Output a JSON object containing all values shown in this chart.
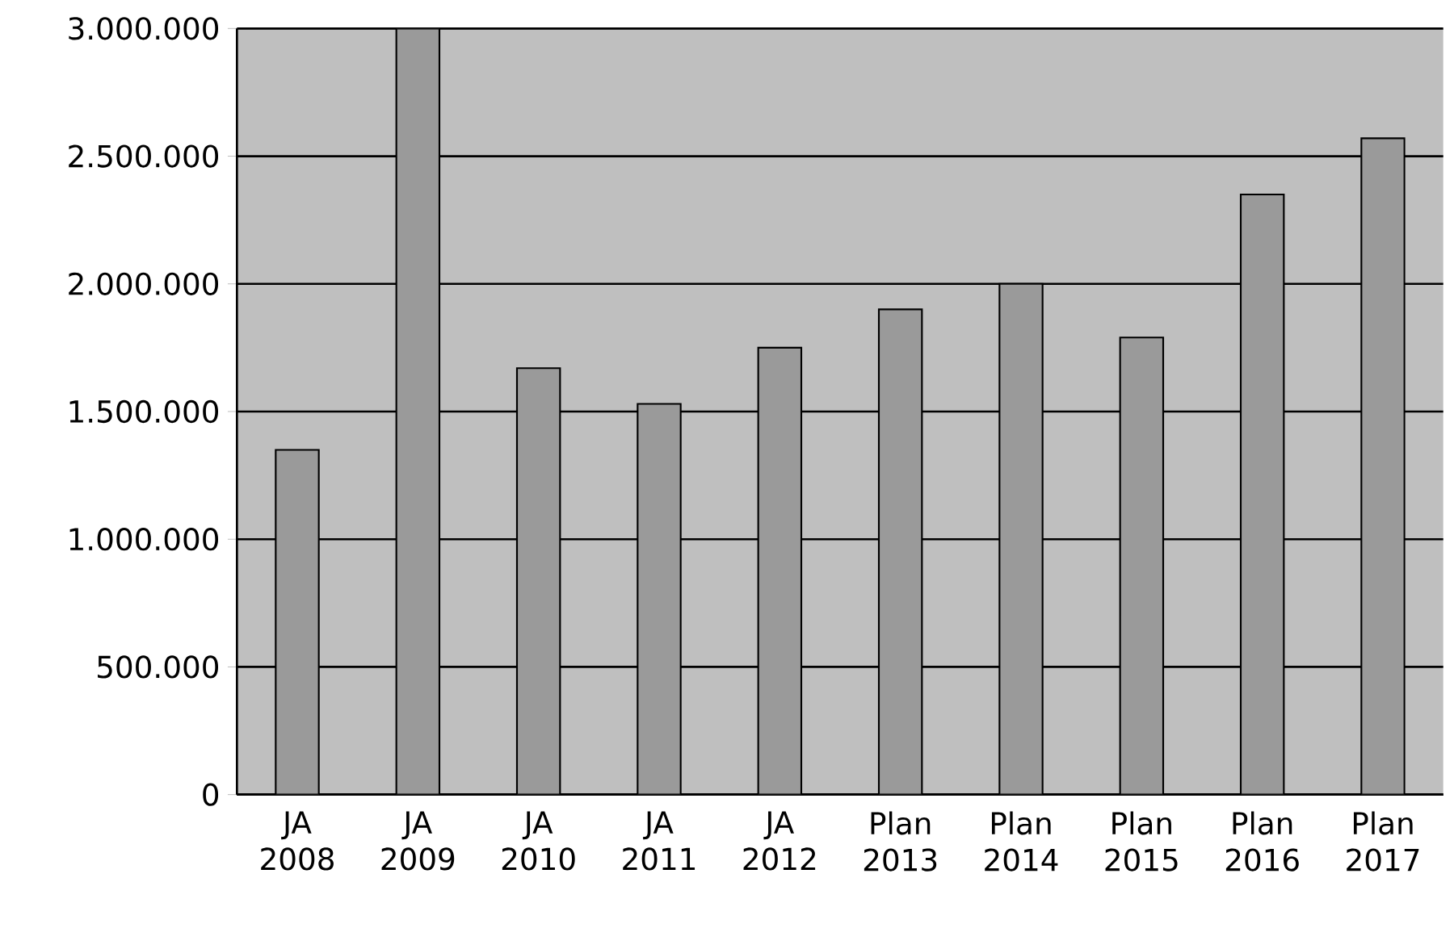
{
  "chart_data": {
    "type": "bar",
    "categories": [
      "JA 2008",
      "JA 2009",
      "JA 2010",
      "JA 2011",
      "JA 2012",
      "Plan 2013",
      "Plan 2014",
      "Plan 2015",
      "Plan 2016",
      "Plan 2017"
    ],
    "values": [
      1350000,
      3000000,
      1670000,
      1530000,
      1750000,
      1900000,
      2000000,
      1790000,
      2350000,
      2570000
    ],
    "color": "#9a9a9a",
    "ylim": [
      0,
      3000000
    ],
    "yticks": [
      {
        "value": 0,
        "label": "0"
      },
      {
        "value": 500000,
        "label": "500.000"
      },
      {
        "value": 1000000,
        "label": "1.000.000"
      },
      {
        "value": 1500000,
        "label": "1.500.000"
      },
      {
        "value": 2000000,
        "label": "2.000.000"
      },
      {
        "value": 2500000,
        "label": "2.500.000"
      },
      {
        "value": 3000000,
        "label": "3.000.000"
      }
    ],
    "grid": "y"
  }
}
